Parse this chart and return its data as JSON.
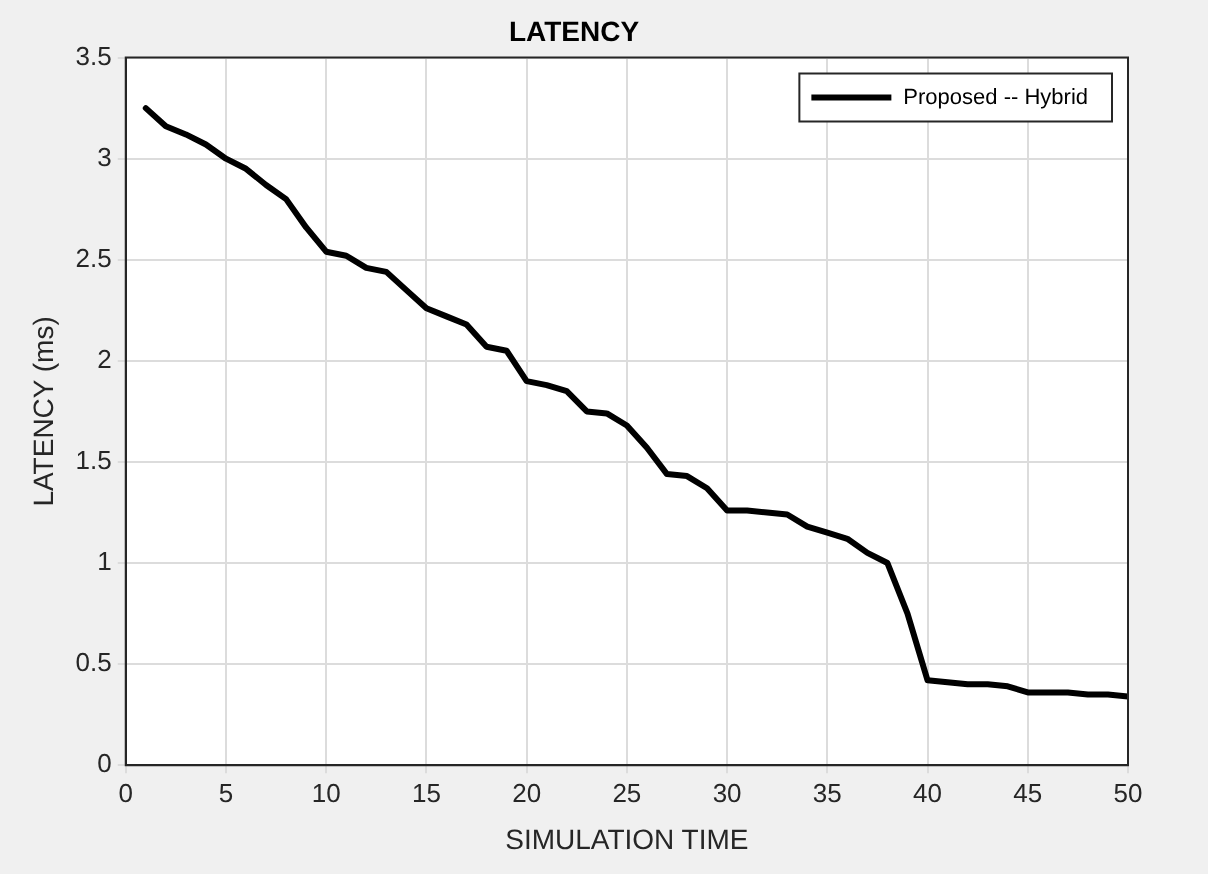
{
  "chart_data": {
    "type": "line",
    "title": "LATENCY",
    "xlabel": "SIMULATION TIME",
    "ylabel": "LATENCY (ms)",
    "x": [
      1,
      2,
      3,
      4,
      5,
      6,
      7,
      8,
      9,
      10,
      11,
      12,
      13,
      14,
      15,
      16,
      17,
      18,
      19,
      20,
      21,
      22,
      23,
      24,
      25,
      26,
      27,
      28,
      29,
      30,
      31,
      32,
      33,
      34,
      35,
      36,
      37,
      38,
      39,
      40,
      41,
      42,
      43,
      44,
      45,
      46,
      47,
      48,
      49,
      50
    ],
    "series": [
      {
        "name": "Proposed -- Hybrid",
        "color": "#000000",
        "values": [
          3.25,
          3.16,
          3.12,
          3.07,
          3.0,
          2.95,
          2.87,
          2.8,
          2.66,
          2.54,
          2.52,
          2.46,
          2.44,
          2.35,
          2.26,
          2.22,
          2.18,
          2.07,
          2.05,
          1.9,
          1.88,
          1.85,
          1.75,
          1.74,
          1.68,
          1.57,
          1.44,
          1.43,
          1.37,
          1.26,
          1.26,
          1.25,
          1.24,
          1.18,
          1.15,
          1.12,
          1.05,
          1.0,
          0.75,
          0.42,
          0.41,
          0.4,
          0.4,
          0.39,
          0.36,
          0.36,
          0.36,
          0.35,
          0.35,
          0.34
        ]
      }
    ],
    "xlim": [
      0,
      50
    ],
    "xticks": [
      0,
      5,
      10,
      15,
      20,
      25,
      30,
      35,
      40,
      45,
      50
    ],
    "ylim": [
      0,
      3.5
    ],
    "yticks": [
      0,
      0.5,
      1,
      1.5,
      2,
      2.5,
      3,
      3.5
    ],
    "grid": true,
    "legend": "top right",
    "marker": "none",
    "line_style": "solid"
  }
}
